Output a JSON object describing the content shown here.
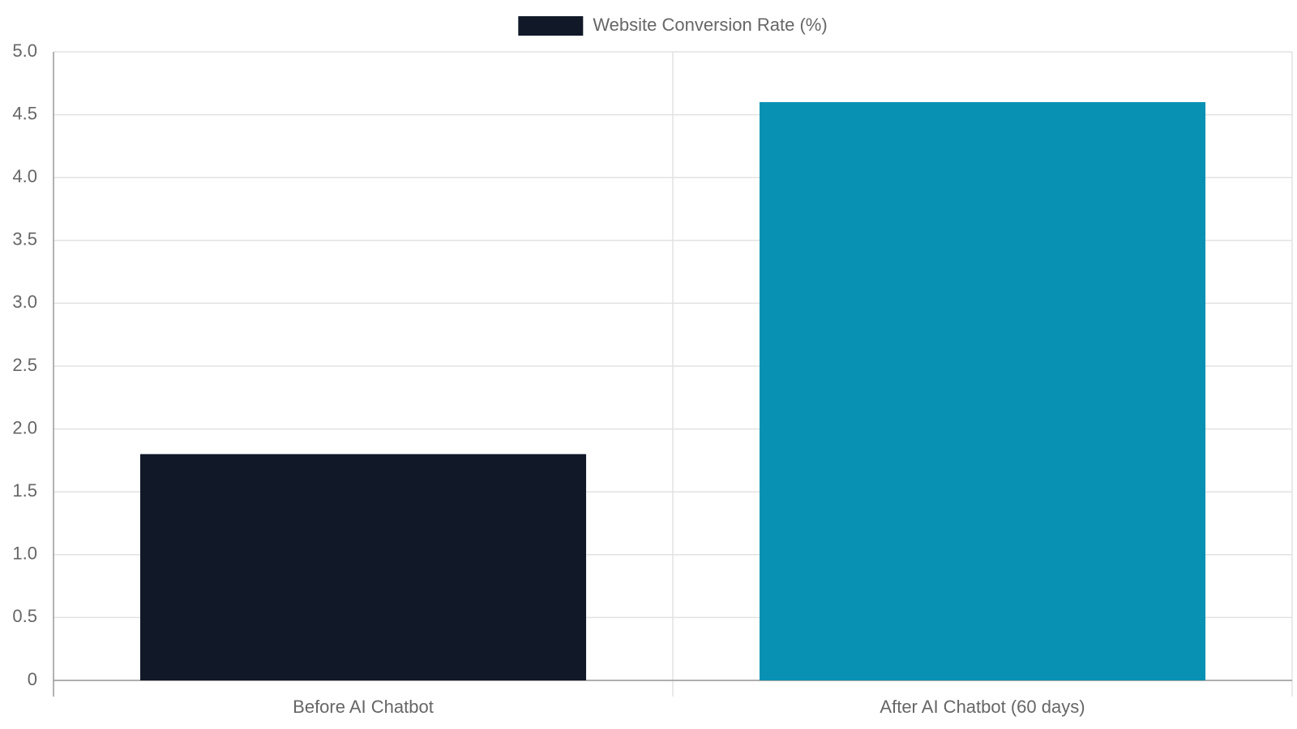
{
  "chart_data": {
    "type": "bar",
    "categories": [
      "Before AI Chatbot",
      "After AI Chatbot (60 days)"
    ],
    "series": [
      {
        "name": "Website Conversion Rate (%)",
        "colors": [
          "#111827",
          "#0891b2"
        ],
        "values": [
          1.8,
          4.6
        ]
      }
    ],
    "ylim": [
      0,
      5
    ],
    "yticks": [
      0,
      0.5,
      {
        "value": 1,
        "label": "1.0"
      },
      1.5,
      {
        "value": 2,
        "label": "2.0"
      },
      2.5,
      {
        "value": 3,
        "label": "3.0"
      },
      3.5,
      {
        "value": 4,
        "label": "4.0"
      },
      4.5,
      {
        "value": 5,
        "label": "5.0"
      }
    ],
    "grid": true,
    "legend": "top"
  }
}
